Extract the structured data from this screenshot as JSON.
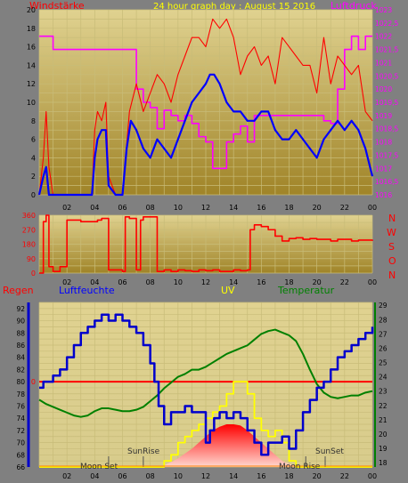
{
  "header": {
    "left_label": "Windstärke",
    "title": "24 hour graph day : August 15 2016",
    "right_label": "Luftdruck"
  },
  "lower_header": {
    "regen": "Regen",
    "luftfeuchte": "Luftfeuchte",
    "uv": "UV",
    "temperatur": "Temperatur"
  },
  "compass": [
    "N",
    "W",
    "S",
    "O",
    "N"
  ],
  "annotations": {
    "moon_set": "Moon Set",
    "sun_rise": "SunRise",
    "moon_rise": "Moon Rise",
    "sun_set": "SunSet"
  },
  "colors": {
    "background": "#808080",
    "plot_top": "#d8c87e",
    "plot_bottom": "#a88a30",
    "wind": "#ff0000",
    "wind_avg": "#0000ff",
    "pressure": "#ff00ff",
    "direction": "#ff0000",
    "humidity": "#0000cc",
    "temperature": "#008000",
    "uv": "#ffff00",
    "rain": "#ff0000",
    "solar": "#ff0000"
  },
  "chart_data": [
    {
      "type": "line",
      "title": "24 hour graph day : August 15 2016",
      "x_ticks": [
        "02",
        "04",
        "06",
        "08",
        "10",
        "12",
        "14",
        "16",
        "18",
        "20",
        "22",
        "00"
      ],
      "xlim": [
        0,
        24
      ],
      "y_left_label": "Windstärke",
      "y_left_ticks": [
        "0",
        "2",
        "4",
        "6",
        "8",
        "10",
        "12",
        "14",
        "16",
        "18",
        "20"
      ],
      "ylim_left": [
        0,
        20
      ],
      "y_right_label": "Luftdruck",
      "y_right_ticks": [
        "1016",
        "1016,5",
        "1017",
        "1017,5",
        "1018",
        "1018,5",
        "1019",
        "1019,5",
        "1020",
        "1020,5",
        "1021",
        "1021,5",
        "1022",
        "1022,5",
        "1023"
      ],
      "ylim_right": [
        1016,
        1023
      ],
      "series": [
        {
          "id": "gust",
          "x": [
            0,
            0.3,
            0.5,
            0.7,
            1,
            1.5,
            2,
            3,
            3.8,
            4,
            4.2,
            4.5,
            4.8,
            5,
            5.5,
            6,
            6.5,
            7,
            7.5,
            8,
            8.5,
            9,
            9.5,
            10,
            10.5,
            11,
            11.5,
            12,
            12.5,
            13,
            13.5,
            14,
            14.5,
            15,
            15.5,
            16,
            16.5,
            17,
            17.5,
            18,
            18.5,
            19,
            19.5,
            20,
            20.5,
            21,
            21.5,
            22,
            22.5,
            23,
            23.5,
            24
          ],
          "values": [
            0,
            4,
            9,
            3,
            0,
            0,
            0,
            0,
            0,
            7,
            9,
            8,
            10,
            2,
            0,
            0,
            9,
            12,
            9,
            11,
            13,
            12,
            10,
            13,
            15,
            17,
            17,
            16,
            19,
            18,
            19,
            17,
            13,
            15,
            16,
            14,
            15,
            12,
            17,
            16,
            15,
            14,
            14,
            11,
            17,
            12,
            15,
            14,
            13,
            14,
            9,
            8
          ]
        },
        {
          "id": "average",
          "x": [
            0,
            0.3,
            0.5,
            0.7,
            1,
            2,
            3,
            3.8,
            4,
            4.2,
            4.5,
            4.8,
            5,
            5.5,
            6,
            6.3,
            6.6,
            7,
            7.5,
            8,
            8.5,
            9,
            9.5,
            10,
            10.5,
            11,
            11.5,
            12,
            12.3,
            12.6,
            13,
            13.5,
            14,
            14.5,
            15,
            15.5,
            16,
            16.5,
            17,
            17.5,
            18,
            18.5,
            19,
            19.5,
            20,
            20.5,
            21,
            21.5,
            22,
            22.5,
            23,
            23.5,
            24
          ],
          "values": [
            0,
            2,
            3,
            0,
            0,
            0,
            0,
            0,
            4,
            6,
            7,
            7,
            1,
            0,
            0,
            5,
            8,
            7,
            5,
            4,
            6,
            5,
            4,
            6,
            8,
            10,
            11,
            12,
            13,
            13,
            12,
            10,
            9,
            9,
            8,
            8,
            9,
            9,
            7,
            6,
            6,
            7,
            6,
            5,
            4,
            6,
            7,
            8,
            7,
            8,
            7,
            5,
            2
          ]
        },
        {
          "id": "pressure",
          "x": [
            0,
            0.5,
            1,
            2,
            3,
            4,
            5,
            6,
            6.8,
            7,
            7.5,
            8,
            8.5,
            9,
            9.5,
            10,
            10.5,
            11,
            11.5,
            12,
            12.5,
            13,
            13.5,
            14,
            14.5,
            15,
            15.5,
            16,
            17,
            18,
            19,
            20,
            20.5,
            21,
            21.5,
            22,
            22.5,
            23,
            23.5,
            24
          ],
          "values": [
            1022,
            1022,
            1021.5,
            1021.5,
            1021.5,
            1021.5,
            1021.5,
            1021.5,
            1021.5,
            1020,
            1019.5,
            1019.3,
            1018.5,
            1019.2,
            1019,
            1018.8,
            1019,
            1018.7,
            1018.2,
            1018,
            1017,
            1017,
            1018,
            1018.3,
            1018.6,
            1018,
            1019,
            1019,
            1019,
            1019,
            1019,
            1019,
            1018.8,
            1018.7,
            1020,
            1021.5,
            1022,
            1021.5,
            1022,
            1022
          ]
        }
      ]
    },
    {
      "type": "line",
      "x_ticks": [
        "02",
        "04",
        "06",
        "08",
        "10",
        "12",
        "14",
        "16",
        "18",
        "20",
        "22",
        "00"
      ],
      "xlim": [
        0,
        24
      ],
      "y_ticks": [
        "0",
        "90",
        "180",
        "270",
        "360"
      ],
      "ylim": [
        0,
        360
      ],
      "y_right_labels": [
        "N",
        "W",
        "S",
        "O",
        "N"
      ],
      "series": [
        {
          "id": "direction",
          "x": [
            0,
            0.3,
            0.5,
            0.7,
            1,
            1.5,
            2,
            3,
            4,
            4.2,
            4.5,
            5,
            5.5,
            6,
            6.2,
            6.5,
            7,
            7.3,
            7.5,
            8,
            8.5,
            9,
            9.5,
            10,
            10.5,
            11,
            11.5,
            12,
            12.5,
            13,
            13.5,
            14,
            14.5,
            15,
            15.2,
            15.5,
            16,
            16.5,
            17,
            17.5,
            18,
            18.5,
            19,
            19.5,
            20,
            20.5,
            21,
            21.5,
            22,
            22.5,
            23,
            23.5,
            24
          ],
          "values": [
            0,
            320,
            360,
            40,
            10,
            40,
            330,
            320,
            320,
            330,
            340,
            20,
            20,
            10,
            350,
            340,
            20,
            330,
            350,
            350,
            10,
            20,
            10,
            20,
            15,
            10,
            20,
            15,
            20,
            10,
            10,
            20,
            15,
            20,
            270,
            300,
            290,
            270,
            230,
            200,
            215,
            220,
            210,
            215,
            210,
            210,
            200,
            210,
            210,
            200,
            205,
            205,
            200
          ]
        }
      ]
    },
    {
      "type": "line",
      "x_ticks": [
        "02",
        "04",
        "06",
        "08",
        "10",
        "12",
        "14",
        "16",
        "18",
        "20",
        "22",
        "00"
      ],
      "xlim": [
        0,
        24
      ],
      "y_left_ticks": [
        "66",
        "68",
        "70",
        "72",
        "74",
        "76",
        "78",
        "80",
        "82",
        "84",
        "86",
        "88",
        "90",
        "92"
      ],
      "ylim_left": [
        66,
        93
      ],
      "y_right_ticks": [
        "18",
        "19",
        "20",
        "21",
        "22",
        "23",
        "24",
        "25",
        "26",
        "27",
        "28",
        "29"
      ],
      "ylim_right": [
        17.7,
        29.2
      ],
      "rain_marker": "0",
      "series": [
        {
          "id": "luftfeuchte",
          "x": [
            0,
            0.3,
            1,
            1.5,
            2,
            2.5,
            3,
            3.5,
            4,
            4.5,
            5,
            5.5,
            6,
            6.5,
            7,
            7.5,
            8,
            8.3,
            8.6,
            9,
            9.5,
            10,
            10.5,
            11,
            11.5,
            12,
            12.3,
            12.6,
            13,
            13.5,
            14,
            14.5,
            15,
            15.5,
            16,
            16.5,
            17,
            17.5,
            18,
            18.5,
            19,
            19.5,
            20,
            20.5,
            21,
            21.5,
            22,
            22.5,
            23,
            23.5,
            24
          ],
          "values": [
            79,
            80,
            81,
            82,
            84,
            86,
            88,
            89,
            90,
            91,
            90,
            91,
            90,
            89,
            88,
            86,
            83,
            80,
            76,
            73,
            75,
            75,
            76,
            75,
            75,
            70,
            72,
            74,
            75,
            74,
            75,
            74,
            72,
            70,
            68,
            70,
            70,
            71,
            69,
            72,
            75,
            77,
            79,
            80,
            82,
            84,
            85,
            86,
            87,
            88,
            89
          ]
        },
        {
          "id": "temperatur",
          "x": [
            0,
            0.5,
            1,
            1.5,
            2,
            2.5,
            3,
            3.5,
            4,
            4.5,
            5,
            5.5,
            6,
            6.5,
            7,
            7.5,
            8,
            8.5,
            9,
            9.5,
            10,
            10.5,
            11,
            11.5,
            12,
            12.5,
            13,
            13.5,
            14,
            14.5,
            15,
            15.5,
            16,
            16.5,
            17,
            17.5,
            18,
            18.5,
            19,
            19.5,
            20,
            20.5,
            21,
            21.5,
            22,
            22.5,
            23,
            23.5,
            24
          ],
          "values": [
            22.4,
            22.1,
            21.9,
            21.7,
            21.5,
            21.3,
            21.2,
            21.3,
            21.6,
            21.8,
            21.8,
            21.7,
            21.6,
            21.6,
            21.7,
            21.9,
            22.3,
            22.7,
            23.2,
            23.6,
            24,
            24.2,
            24.5,
            24.5,
            24.7,
            25,
            25.3,
            25.6,
            25.8,
            26,
            26.2,
            26.6,
            27,
            27.2,
            27.3,
            27.1,
            26.9,
            26.5,
            25.6,
            24.5,
            23.5,
            22.9,
            22.6,
            22.5,
            22.6,
            22.7,
            22.7,
            22.9,
            23
          ]
        },
        {
          "id": "uv",
          "x": [
            0,
            8.5,
            9,
            9.5,
            10,
            10.5,
            11,
            11.5,
            12,
            12.5,
            13,
            13.5,
            14,
            14.5,
            15,
            15.5,
            16,
            16.5,
            17,
            17.5,
            18,
            18.5,
            19,
            24
          ],
          "values": [
            66,
            66,
            67,
            68,
            70,
            71,
            72,
            73,
            74,
            75,
            76,
            78,
            80,
            80,
            78,
            74,
            72,
            71,
            72,
            70,
            67,
            66,
            66,
            66
          ]
        },
        {
          "id": "solar",
          "x": [
            0,
            8.8,
            9,
            9.5,
            10,
            10.5,
            11,
            11.5,
            12,
            12.5,
            13,
            13.5,
            14,
            14.5,
            15,
            15.5,
            16,
            16.5,
            17,
            17.5,
            18,
            18.5,
            19,
            24
          ],
          "values": [
            66,
            66,
            66.3,
            66.8,
            67.4,
            68.2,
            69,
            70,
            71,
            72,
            72.6,
            73,
            73,
            72.8,
            72,
            71,
            70,
            69,
            68,
            67,
            66.5,
            66.2,
            66,
            66
          ]
        }
      ]
    }
  ]
}
